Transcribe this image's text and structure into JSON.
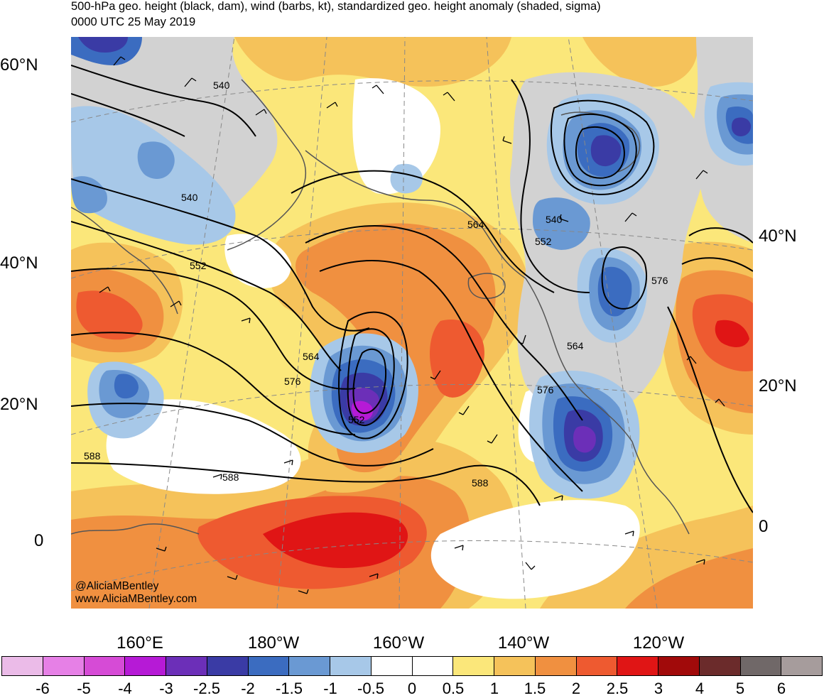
{
  "title": {
    "line1": "500-hPa geo. height (black, dam), wind (barbs, kt), standardized geo. height anomaly (shaded, sigma)",
    "line2": "0000 UTC 25 May 2019"
  },
  "latitude_labels": {
    "left": [
      "60°N",
      "40°N",
      "20°N",
      "0"
    ],
    "right": [
      "40°N",
      "20°N",
      "0"
    ]
  },
  "longitude_labels": [
    "160°E",
    "180°W",
    "160°W",
    "140°W",
    "120°W"
  ],
  "contour_labels": [
    "540",
    "540",
    "540",
    "552",
    "552",
    "552",
    "564",
    "564",
    "564",
    "576",
    "576",
    "576",
    "588",
    "588",
    "588"
  ],
  "credits": [
    "@AliciaMBentley",
    "www.AliciaMBentley.com"
  ],
  "colorbar": {
    "labels": [
      "-6",
      "-5",
      "-4",
      "-3",
      "-2.5",
      "-2",
      "-1.5",
      "-1",
      "-0.5",
      "0",
      "0.5",
      "1",
      "1.5",
      "2",
      "2.5",
      "3",
      "4",
      "5",
      "6"
    ],
    "colors": [
      "#ebbbe8",
      "#e680e6",
      "#d64bd6",
      "#b61ad6",
      "#6c2fb8",
      "#3a3ba5",
      "#3b6cc0",
      "#6a99d3",
      "#a7c8e8",
      "#ffffff",
      "#ffffff",
      "#fbe77a",
      "#f5c25a",
      "#f09040",
      "#ee5a30",
      "#e01515",
      "#a10a0a",
      "#6b2b2b",
      "#706868",
      "#a69c9c"
    ]
  },
  "colors": {
    "land_negative": "#d2d2d2",
    "coastline": "#555555",
    "contour": "#000000",
    "grid": "#888888"
  }
}
